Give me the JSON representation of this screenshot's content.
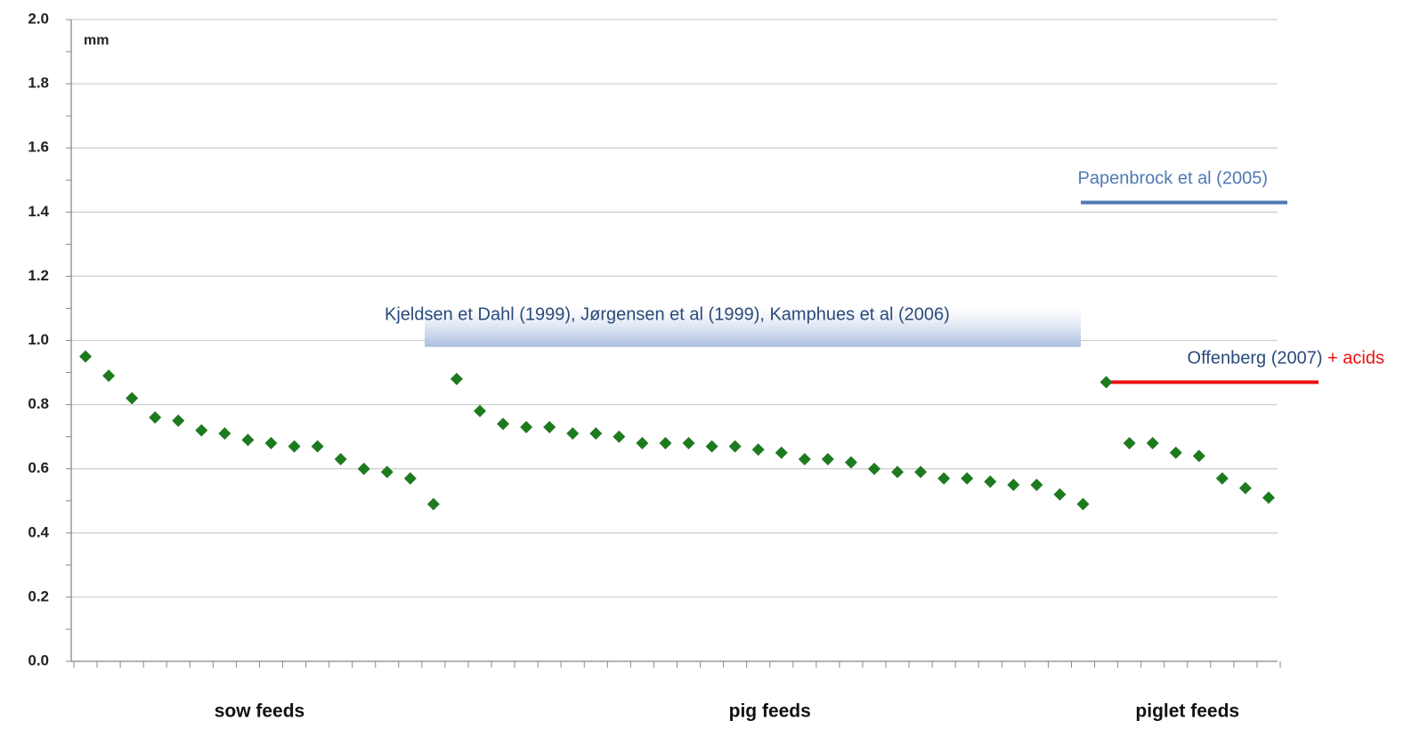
{
  "chart_data": {
    "type": "scatter",
    "unit_label": "mm",
    "color": "#1e7a1e",
    "ylim": [
      0,
      2
    ],
    "yticks": [
      {
        "value": 0,
        "label": "0.0"
      },
      0.2,
      0.4,
      0.6,
      0.8,
      {
        "value": 1,
        "label": "1.0"
      },
      1.2,
      1.4,
      1.6,
      1.8,
      {
        "value": 2,
        "label": "2.0"
      }
    ],
    "grid": true,
    "groups": [
      {
        "name": "sow feeds",
        "values": [
          0.95,
          0.89,
          0.82,
          0.76,
          0.75,
          0.72,
          0.71,
          0.69,
          0.68,
          0.67,
          0.67,
          0.63,
          0.6,
          0.59,
          0.57,
          0.49
        ]
      },
      {
        "name": "pig feeds",
        "values": [
          0.88,
          0.78,
          0.74,
          0.73,
          0.73,
          0.71,
          0.71,
          0.7,
          0.68,
          0.68,
          0.68,
          0.67,
          0.67,
          0.66,
          0.65,
          0.63,
          0.63,
          0.62,
          0.6,
          0.59,
          0.59,
          0.57,
          0.57,
          0.56,
          0.55,
          0.55,
          0.52,
          0.49
        ]
      },
      {
        "name": "piglet feeds",
        "values": [
          0.87,
          0.68,
          0.68,
          0.65,
          0.64,
          0.57,
          0.54,
          0.51
        ]
      }
    ],
    "band": {
      "text": "Kjeldsen et Dahl (1999), Jørgensen et al (1999), Kamphues et al (2006)",
      "range": [
        0.98,
        1.1
      ],
      "color": "#a9bde0"
    },
    "lines": [
      {
        "text": "Papenbrock et al (2005)",
        "value": 1.43,
        "color": "#4f7ab3"
      },
      {
        "text": "Offenberg (2007)",
        "extra": "+ acids",
        "value": 0.87,
        "color": "#ee1111",
        "extra_color": "#ee1111"
      }
    ]
  }
}
